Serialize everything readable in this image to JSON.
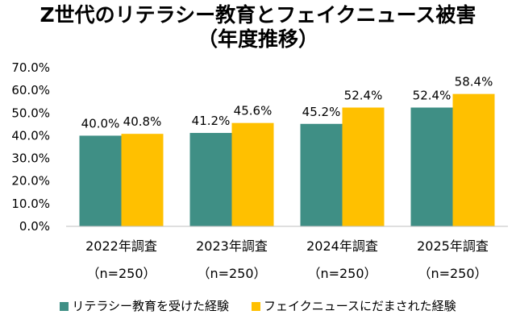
{
  "chart_data": {
    "type": "bar",
    "title": [
      "Z世代のリテラシー教育とフェイクニュース被害",
      "（年度推移）"
    ],
    "categories": [
      [
        "2022年調査",
        "（n=250）"
      ],
      [
        "2023年調査",
        "（n=250）"
      ],
      [
        "2024年調査",
        "（n=250）"
      ],
      [
        "2025年調査",
        "（n=250）"
      ]
    ],
    "series": [
      {
        "name": "リテラシー教育を受けた経験",
        "color": "#3f8f85",
        "values": [
          40.0,
          41.2,
          45.2,
          52.4
        ],
        "labels": [
          "40.0%",
          "41.2%",
          "45.2%",
          "52.4%"
        ]
      },
      {
        "name": "フェイクニュースにだまされた経験",
        "color": "#ffc000",
        "values": [
          40.8,
          45.6,
          52.4,
          58.4
        ],
        "labels": [
          "40.8%",
          "45.6%",
          "52.4%",
          "58.4%"
        ]
      }
    ],
    "ylim": [
      0,
      70
    ],
    "yticks": [
      0,
      10,
      20,
      30,
      40,
      50,
      60,
      70
    ],
    "ytick_labels": [
      "0.0%",
      "10.0%",
      "20.0%",
      "30.0%",
      "40.0%",
      "50.0%",
      "60.0%",
      "70.0%"
    ],
    "grid": false,
    "legend": "bottom"
  }
}
